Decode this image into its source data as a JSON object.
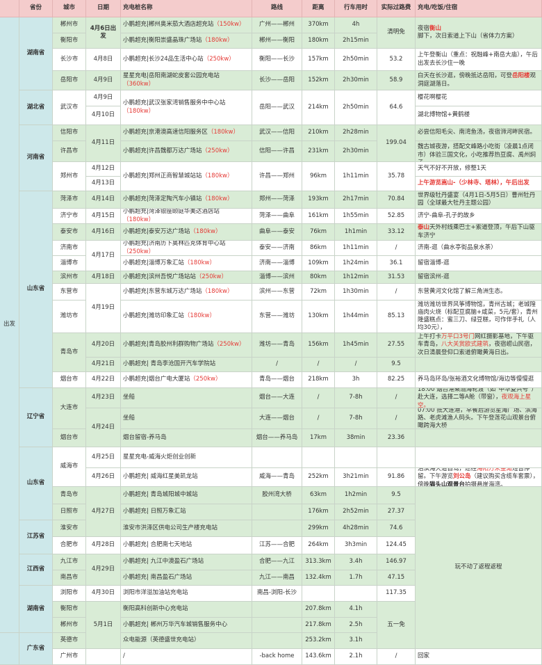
{
  "header": [
    "",
    "省份",
    "城市",
    "日期",
    "充电桩名称",
    "路线",
    "距离",
    "行车用时",
    "实际过路费",
    "充电/吃饭/住宿"
  ],
  "start_col": [
    "出发",
    ""
  ],
  "provinces": [
    "湖南省",
    "湖北省",
    "河南省",
    "山东省",
    "辽宁省",
    "山东省",
    "江苏省",
    "江西省",
    "湖南省",
    "广东省"
  ],
  "cities": [
    "郴州市",
    "衡阳市",
    "长沙市",
    "岳阳市",
    "武汉市",
    "信阳市",
    "许昌市",
    "郑州市",
    "菏泽市",
    "济宁市",
    "泰安市",
    "济南市",
    "淄博市",
    "滨州市",
    "东营市",
    "潍坊市",
    "青岛市",
    "烟台市",
    "大连市",
    "烟台市",
    "威海市",
    "青岛市",
    "日照市",
    "淮安市",
    "合肥市",
    "九江市",
    "南昌市",
    "浏阳市",
    "衡阳市",
    "郴州市",
    "英德市",
    "广州市"
  ],
  "dates": [
    "4月6日出发",
    "4月8日",
    "4月9日",
    "4月9日",
    "4月10日",
    "4月11日",
    "4月12日",
    "4月13日",
    "4月14日",
    "4月15日",
    "4月16日",
    "4月17日",
    "4月18日",
    "4月19日",
    "4月20日",
    "4月21日",
    "4月22日",
    "4月23日",
    "4月24日",
    "4月25日",
    "4月26日",
    "4月27日",
    "4月28日",
    "4月29日",
    "4月30日",
    "5月1日",
    ""
  ],
  "stations": [
    {
      "name": "小鹏超充|郴州奥米茄大酒店超充站",
      "power": "（150kw）"
    },
    {
      "name": "小鹏超充|衡阳崇盛晶珠广场站",
      "power": "（180kw）"
    },
    {
      "name": "小鹏超充|长沙24品生活中心站",
      "power": "（250kw）"
    },
    {
      "name": "星星充电|岳阳南湖蛇皮套公园充电站",
      "power": "（360kw）"
    },
    {
      "name": "小鹏超充|武汉张家湾销售服务中中心站",
      "power": "（180kw）"
    },
    {
      "name": "小鹏超充|京港澳高速信阳服务区",
      "power": "（180kw）"
    },
    {
      "name": "小鹏超充|许昌魏都万达广场站",
      "power": "（250kw）"
    },
    {
      "name": "小鹏超充|郑州正商智慧城站站",
      "power": "（180kw）"
    },
    {
      "name": "小鹏超充|菏泽定陶汽车小镇站",
      "power": "（180kw）"
    },
    {
      "name": "小鹏超充|菏泽银座颐庭华美达酒店站",
      "power": "（180kw）"
    },
    {
      "name": "小鹏超充|泰安万达广场站",
      "power": "（180kw）"
    },
    {
      "name": "小鹏超充|济南历下奥林匹克体育中心站",
      "power": "（250kw）"
    },
    {
      "name": "小鹏超充|淄博万象汇站",
      "power": "（180kw）"
    },
    {
      "name": "小鹏超充|滨州吾悦广场站站",
      "power": "（250kw）"
    },
    {
      "name": "小鹏超充|东营东城万达广场站",
      "power": "（180kw）"
    },
    {
      "name": "小鹏超充|潍坊印象汇站",
      "power": "（180kw）"
    },
    {
      "name": "小鹏超充|青岛胶州利群购物广场站",
      "power": "（250kw）"
    },
    {
      "name": "小鹏超充| 青岛李沧国开汽车学院站",
      "power": ""
    },
    {
      "name": "小鹏超充|烟台广电大厦站",
      "power": "（250kw）"
    },
    {
      "name": "坐船",
      "power": ""
    },
    {
      "name": "坐船",
      "power": ""
    },
    {
      "name": "烟台留宿-养马岛",
      "power": ""
    },
    {
      "name": "星星充电-威海火炬创业创新",
      "power": ""
    },
    {
      "name": "小鹏超充| 威海红星美凯龙站",
      "power": ""
    },
    {
      "name": "小鹏超充| 青岛城阳城中城站",
      "power": ""
    },
    {
      "name": "小鹏超充| 日照万象汇站",
      "power": ""
    },
    {
      "name": "淮安市洪泽区供电公司生产楼充电站",
      "power": ""
    },
    {
      "name": "小鹏超充| 合肥南七天地站",
      "power": ""
    },
    {
      "name": "小鹏超充| 九江中澳盈石广场站",
      "power": ""
    },
    {
      "name": "小鹏超充| 南昌盈石广场站",
      "power": ""
    },
    {
      "name": "浏阳市洋溢加油站充电站",
      "power": ""
    },
    {
      "name": "衡阳高科创新中心充电站",
      "power": ""
    },
    {
      "name": "小鹏超充| 郴州万华汽车城销售服务中心",
      "power": ""
    },
    {
      "name": "众电能源（英德盛世充电站）",
      "power": ""
    },
    {
      "name": "/",
      "power": ""
    }
  ],
  "routes": [
    "广州——郴州",
    "郴州——衡阳",
    "衡阳——长沙",
    "长沙——岳阳",
    "岳阳——武汉",
    "武汉——信阳",
    "信阳——许昌",
    "许昌——郑州",
    "郑州——菏泽",
    "菏泽——曲阜",
    "曲阜——泰安",
    "泰安——济南",
    "济南——淄博",
    "淄博——滨州",
    "滨州——东营",
    "东营——潍坊",
    "潍坊——青岛",
    "/",
    "青岛——烟台",
    "烟台——大连",
    "大连——烟台",
    "烟台——养马岛",
    "",
    "威海——青岛",
    "胶州湾大桥",
    "",
    "",
    "江苏——合肥",
    "合肥——九江",
    "九江——南昌",
    "南昌-浏阳-长沙",
    "",
    "",
    "",
    "-back home"
  ],
  "distances": [
    "370km",
    "180km",
    "157km",
    "152km",
    "214km",
    "210km",
    "231km",
    "96km",
    "193km",
    "161km",
    "76km",
    "86km",
    "109km",
    "80km",
    "72km",
    "130km",
    "156km",
    "/",
    "218km",
    "/",
    "/",
    "17km",
    "",
    "252km",
    "63km",
    "176km",
    "299km",
    "264km",
    "313.3km",
    "132.4km",
    "",
    "207.8km",
    "217.8km",
    "253.2km",
    "143.6km"
  ],
  "times": [
    "4h",
    "2h15min",
    "2h50min",
    "2h30min",
    "2h50min",
    "2h28min",
    "2h30min",
    "1h11min",
    "2h17min",
    "1h55min",
    "1h1min",
    "1h11min",
    "1h24min",
    "1h12min",
    "1h30min",
    "1h44min",
    "1h45min",
    "/",
    "3h",
    "7-8h",
    "7-8h",
    "38min",
    "",
    "3h21min",
    "1h2min",
    "2h52min",
    "4h28min",
    "3h3min",
    "3.4h",
    "1.7h",
    "",
    "4.1h",
    "2.5h",
    "3.1h",
    "2.1h"
  ],
  "tolls": [
    "清明免",
    "53.2",
    "58.9",
    "64.6",
    "199.04",
    "35.78",
    "70.84",
    "52.85",
    "33.12",
    "/",
    "36.1",
    "31.53",
    "/",
    "85.13",
    "27.55",
    "9.5",
    "82.25",
    "/",
    "/",
    "23.36",
    "",
    "91.86",
    "9.5",
    "27.37",
    "74.6",
    "124.45",
    "146.97",
    "47.15",
    "117.35",
    "五一免",
    "/"
  ],
  "notes": [
    [
      {
        "t": "夜宿"
      },
      {
        "t": "衡山",
        "s": "redbold"
      },
      {
        "t": "脚下，次日索道上下山（省体力方案）"
      }
    ],
    [
      {
        "t": "上午登衡山（重点：祝融峰+南岳大庙），午后出发去长沙住一晚"
      }
    ],
    [
      {
        "t": "白天在长沙逛，傍晚抵达岳阳，可登"
      },
      {
        "t": "岳阳楼",
        "s": "redbold"
      },
      {
        "t": "观洞庭湖落日。"
      }
    ],
    [
      {
        "t": "樱花啊樱花"
      }
    ],
    [
      {
        "t": "湖北博物馆+黄鹤楼"
      }
    ],
    [
      {
        "t": "必尝信阳毛尖、南湾鱼汤，夜宿浉河畔民宿。"
      }
    ],
    [
      {
        "t": "胖东来",
        "s": "redbold"
      },
      {
        "t": "时代广场（旗舰标杆）-步行5分钟至曹魏古城夜游，搭配文峰路小吃街（凌晨1点闭市）体验三国文化，小吃推荐热豆腐、禹州焖子"
      }
    ],
    [
      {
        "t": "天气不好不开放，修整1天"
      }
    ],
    [
      {
        "t": "上午游览嵩山-（少林寺、塔林），午后出发",
        "s": "redbold"
      }
    ],
    [
      {
        "t": "世界级牡丹盛宴（4月1日-5月5日）曹州牡丹园（全球最大牡丹主题公园）"
      }
    ],
    [
      {
        "t": "济宁-曲阜-孔子的故乡"
      }
    ],
    [
      {
        "t": "泰山",
        "s": "redbold"
      },
      {
        "t": "天外村线乘巴士+索道登顶，午后下山驱车济宁"
      }
    ],
    [
      {
        "t": "济南-逛（曲水亭街品泉水茶）"
      }
    ],
    [
      {
        "t": "留宿淄博-逛"
      }
    ],
    [
      {
        "t": "留宿滨州-逛"
      }
    ],
    [
      {
        "t": "东营黄河文化馆了解三角洲生态。"
      }
    ],
    [
      {
        "t": "潍坊潍坊世界风筝博物馆，青州古城；老城隍庙肉火烧（标配豆腐脑+咸菜，5元/套），青州隆盛糕点：蜜三刀、绿豆糕，可作伴手礼（人均30元），"
      }
    ],
    [
      {
        "t": "上午打卡"
      },
      {
        "t": "万平口3号门",
        "s": "red"
      },
      {
        "t": "网红摄影基地，下午驱车青岛，"
      },
      {
        "t": "八大关赏欧式建筑",
        "s": "red"
      },
      {
        "t": "，夜宿崂山民宿，次日清晨登仰口索道俯瞰黄海日出。"
      }
    ],
    [],
    [
      {
        "t": "养马岛环岛/张裕酒文化博物馆/海边等慢慢逛"
      }
    ],
    [
      {
        "t": "18:00 烟台港乘渤海轮渡（如“中华复兴号”）赴大连，选择二等A舱（带窗），"
      },
      {
        "t": "夜观海上星空。",
        "s": "red"
      }
    ],
    [
      {
        "t": "07:00 抵大连港，早餐后游览星海广场、滨海路、老虎滩渔人码头。下午登莲花山观景台俯瞰跨海大桥"
      }
    ],
    [],
    [],
    [
      {
        "t": "沿滨海大道自驾，途经"
      },
      {
        "t": "海阳万米金滩",
        "s": "red"
      },
      {
        "t": "短暂停留。下午游览"
      },
      {
        "t": "刘公岛",
        "s": "redbold"
      },
      {
        "t": "（建议购买含缆车套票），傍晚"
      },
      {
        "t": "猫头山观景台",
        "s": "bold"
      },
      {
        "t": "拍摄悬崖海湾。"
      }
    ],
    [
      {
        "t": "玩不动了返程返程"
      }
    ],
    [
      {
        "t": "回家"
      }
    ]
  ],
  "colors": {
    "header": "#f4cccc",
    "green_row": "#d9ecd6",
    "province": "#cde8ea",
    "highlight": "#e53935"
  }
}
